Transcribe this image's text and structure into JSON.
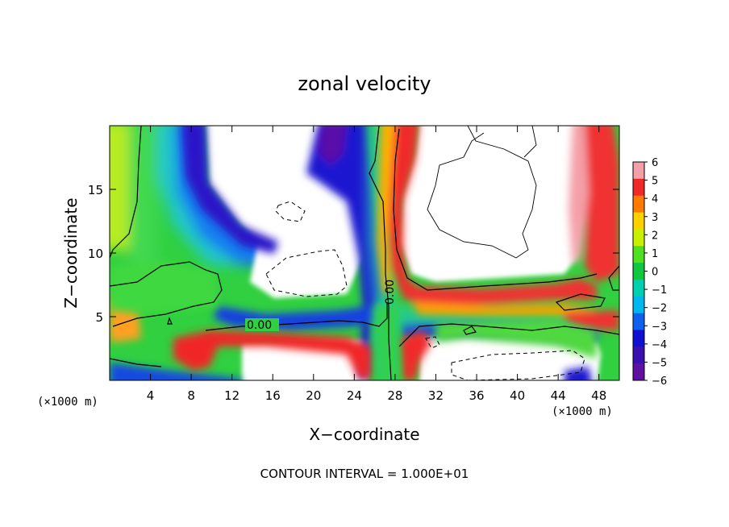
{
  "chart_data": {
    "type": "heatmap",
    "title": "zonal velocity",
    "xlabel": "X−coordinate",
    "ylabel": "Z−coordinate",
    "x_unit_label": "(×1000 m)",
    "x_unit_label_right": "(×1000 m)",
    "xlim": [
      0,
      50
    ],
    "ylim": [
      0,
      20
    ],
    "xticks": [
      4,
      8,
      12,
      16,
      20,
      24,
      28,
      32,
      36,
      40,
      44,
      48
    ],
    "yticks": [
      5,
      10,
      15
    ],
    "colorbar": {
      "min": -6,
      "max": 6,
      "ticks": [
        6,
        5,
        4,
        3,
        2,
        1,
        0,
        -1,
        -2,
        -3,
        -4,
        -5,
        -6
      ],
      "tick_labels": [
        "6",
        "5",
        "4",
        "3",
        "2",
        "1",
        "0",
        "−1",
        "−2",
        "−3",
        "−4",
        "−5",
        "−6"
      ],
      "colors": [
        "#f4a0a8",
        "#f02828",
        "#ff7a00",
        "#ffd000",
        "#c8f000",
        "#50e020",
        "#10c840",
        "#00d0b0",
        "#00b8f0",
        "#1060f0",
        "#1010d0",
        "#3a10b0",
        "#6010a0"
      ]
    },
    "contour_labels": [
      "0.00",
      "0.00"
    ],
    "contour_interval_text": "CONTOUR INTERVAL = 1.000E+01",
    "fields": {
      "note_only": false,
      "upper_left_gradient": [
        {
          "x": 0,
          "z_range": [
            6,
            20
          ],
          "value": 0.5
        },
        {
          "x": 3,
          "z_range": [
            7,
            20
          ],
          "value": 0
        },
        {
          "x": 5,
          "z_range": [
            10,
            20
          ],
          "value": -2
        },
        {
          "x": 8,
          "z_range": [
            13,
            20
          ],
          "value": -4
        },
        {
          "x": 10,
          "z_range": [
            17,
            20
          ],
          "value": -6
        }
      ],
      "ridges": [
        {
          "name": "negative-jet-diagonal",
          "value": -5
        },
        {
          "name": "vertical-jet-x26",
          "value": -5
        },
        {
          "name": "horizontal-jet-z5",
          "value": -4
        },
        {
          "name": "positive-jet-x30",
          "value": 5
        },
        {
          "name": "positive-jet-x48",
          "value": 5
        },
        {
          "name": "positive-layer-z7",
          "value": 5
        }
      ]
    }
  }
}
